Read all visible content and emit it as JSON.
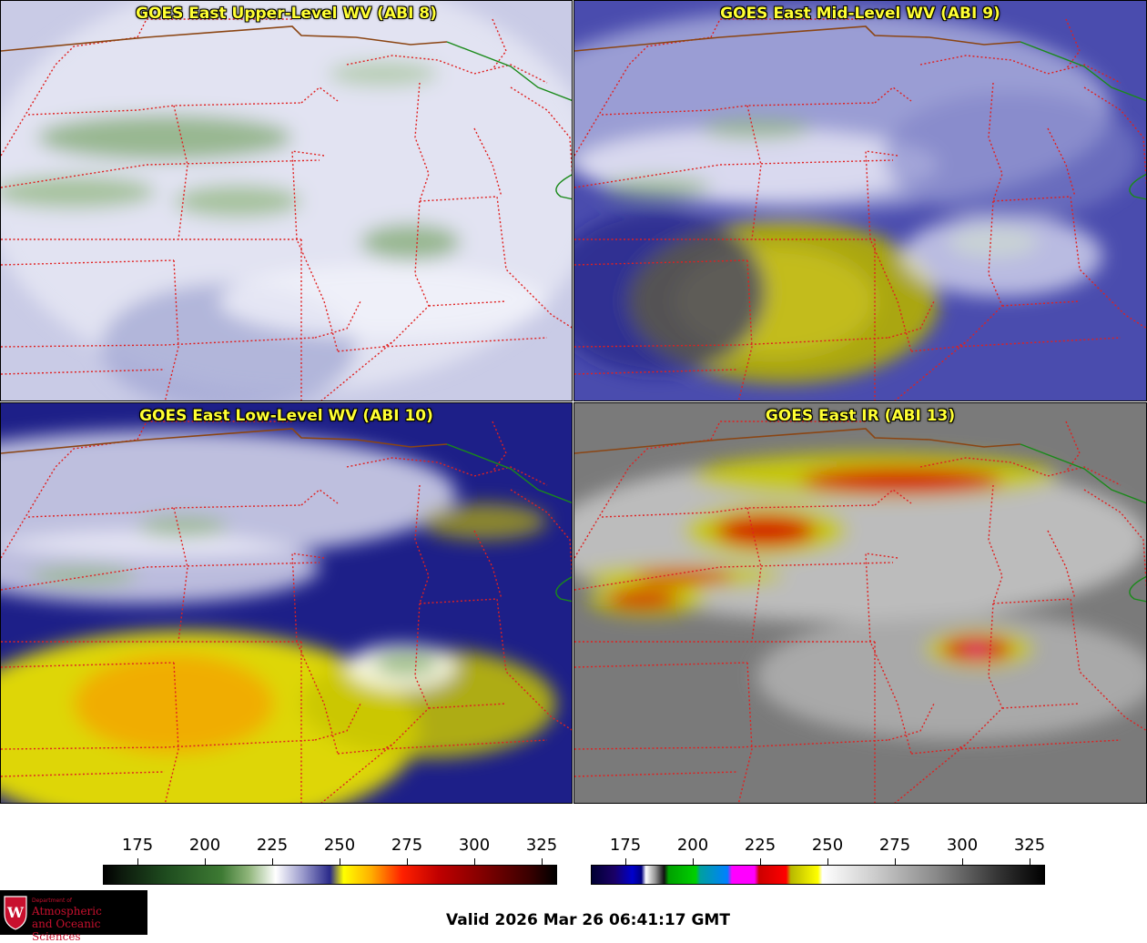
{
  "panels": [
    {
      "title": "GOES East Upper-Level WV (ABI 8)",
      "style": "wv-upper"
    },
    {
      "title": "GOES East Mid-Level WV (ABI 9)",
      "style": "wv-mid"
    },
    {
      "title": "GOES East Low-Level WV (ABI 10)",
      "style": "wv-low"
    },
    {
      "title": "GOES East IR (ABI 13)",
      "style": "ir"
    }
  ],
  "colorbars": [
    {
      "ticks": [
        "175",
        "200",
        "225",
        "250",
        "275",
        "300",
        "325"
      ],
      "gradient": "linear-gradient(to right,#000 0%,#0d1a0d 4%,#1f4d1f 14%,#3d7a33 26%,#8fb57a 32%,#ffffff 38%,#9a9acc 44%,#2a2a8a 50%,#ffff00 53%,#ffb000 59%,#ff2000 66%,#c00000 74%,#800000 84%,#3a0000 94%,#000 100%)"
    },
    {
      "ticks": [
        "175",
        "200",
        "225",
        "250",
        "275",
        "300",
        "325"
      ],
      "gradient": "linear-gradient(to right,#000033 0%,#1a0066 5%,#0000cc 9%,#000080 11%,#fff 12%,#999 14%,#111 16%,#00a000 17%,#00d000 23%,#00a0a0 24%,#0080ff 30%,#ff00ff 31%,#ff00ff 36%,#cc0000 37%,#ff0000 43%,#b8b800 44%,#ffff00 50%,#ffffff 51%,#cfcfcf 62%,#8a8a8a 76%,#333 90%,#000 100%)"
    }
  ],
  "valid_text": "Valid 2026 Mar 26 06:41:17 GMT",
  "logo": {
    "dept": "Department of",
    "line1": "Atmospheric",
    "line2": "and Oceanic Sciences",
    "crest_letter": "W"
  },
  "colors": {
    "state_borders": "#e02020",
    "canada_border": "#8b4513",
    "coast_green": "#1a8a1a",
    "title": "#ffff33"
  }
}
